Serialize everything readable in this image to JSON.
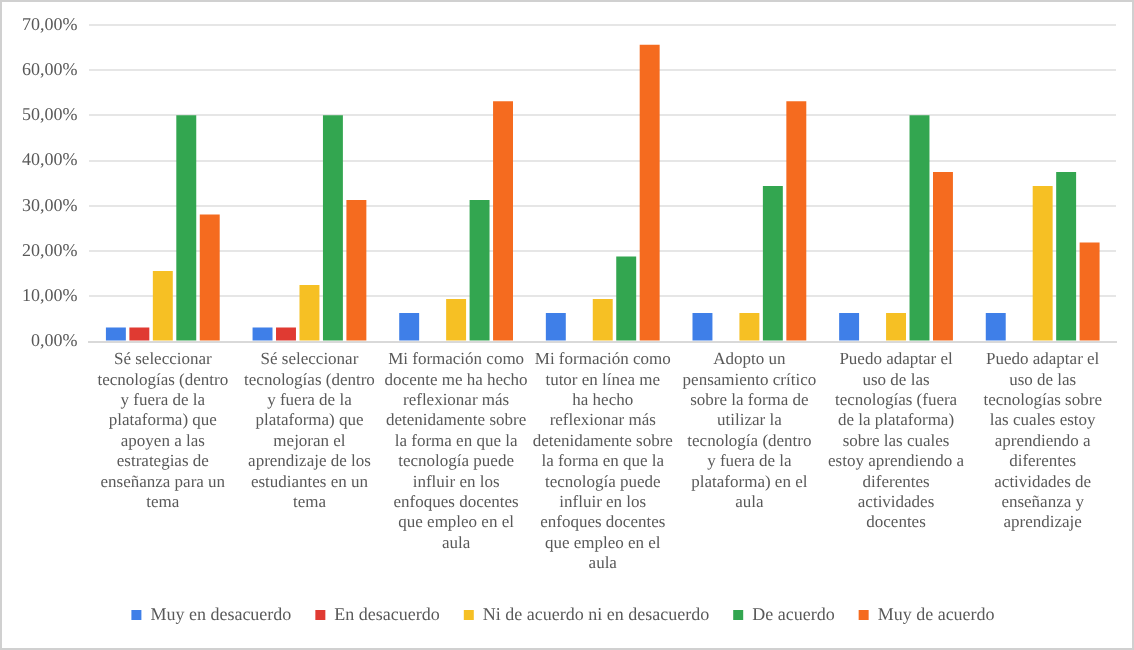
{
  "chart_data": {
    "type": "bar",
    "categories": [
      "Sé seleccionar tecnologías (dentro y fuera de la plataforma) que apoyen a las estrategias de enseñanza para un tema",
      "Sé seleccionar tecnologías (dentro y fuera de la plataforma) que mejoran el aprendizaje de los estudiantes en un tema",
      "Mi formación como docente me ha hecho reflexionar más detenidamente sobre la forma en que la tecnología puede influir en los enfoques docentes que empleo en el aula",
      "Mi formación como tutor en línea me ha hecho reflexionar más detenidamente sobre la forma en que la tecnología puede influir en los enfoques docentes que empleo en el aula",
      "Adopto un pensamiento crítico sobre la forma de utilizar la tecnología (dentro y fuera de la plataforma) en el aula",
      "Puedo adaptar el uso de las tecnologías (fuera de la plataforma) sobre las cuales estoy aprendiendo a diferentes actividades docentes",
      "Puedo adaptar el uso de las tecnologías sobre las cuales estoy aprendiendo a diferentes actividades de enseñanza y aprendizaje"
    ],
    "series": [
      {
        "name": "Muy en desacuerdo",
        "color": "#3f7fe8",
        "values": [
          3.1,
          3.1,
          6.3,
          6.3,
          6.3,
          6.3,
          6.3
        ]
      },
      {
        "name": "En desacuerdo",
        "color": "#e03a32",
        "values": [
          3.1,
          3.1,
          0,
          0,
          0,
          0,
          0
        ]
      },
      {
        "name": "Ni de acuerdo ni en desacuerdo",
        "color": "#f6c024",
        "values": [
          15.6,
          12.5,
          9.4,
          9.4,
          6.3,
          6.3,
          34.4
        ]
      },
      {
        "name": "De acuerdo",
        "color": "#33a650",
        "values": [
          50,
          50,
          31.3,
          18.8,
          34.4,
          50,
          37.5
        ]
      },
      {
        "name": "Muy de acuerdo",
        "color": "#f56b1f",
        "values": [
          28.1,
          31.3,
          53.1,
          65.6,
          53.1,
          37.5,
          21.9
        ]
      }
    ],
    "ylim": [
      0,
      70
    ],
    "yticks": [
      {
        "value": 0,
        "label": "0,00%"
      },
      {
        "value": 10,
        "label": "10,00%"
      },
      {
        "value": 20,
        "label": "20,00%"
      },
      {
        "value": 30,
        "label": "30,00%"
      },
      {
        "value": 40,
        "label": "40,00%"
      },
      {
        "value": 50,
        "label": "50,00%"
      },
      {
        "value": 60,
        "label": "60,00%"
      },
      {
        "value": 70,
        "label": "70,00%"
      }
    ],
    "grid": "y",
    "legend": "bottom"
  }
}
